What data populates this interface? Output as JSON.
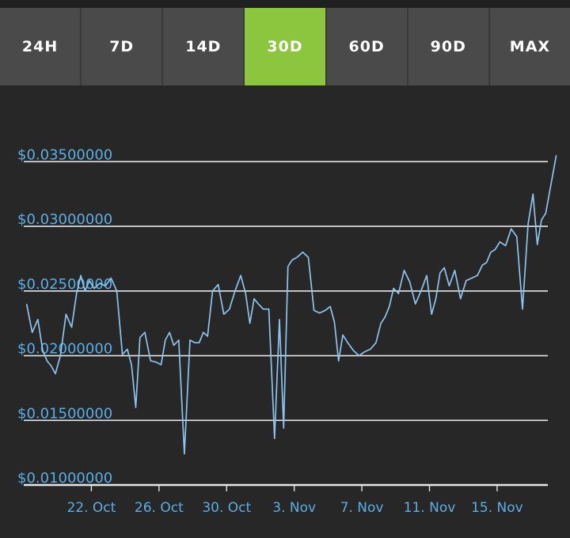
{
  "tabs": [
    {
      "label": "24H",
      "active": false
    },
    {
      "label": "7D",
      "active": false
    },
    {
      "label": "14D",
      "active": false
    },
    {
      "label": "30D",
      "active": true
    },
    {
      "label": "60D",
      "active": false
    },
    {
      "label": "90D",
      "active": false
    },
    {
      "label": "MAX",
      "active": false
    }
  ],
  "colors": {
    "background": "#272727",
    "tab": "#4a4a4a",
    "tab_active": "#8cc63f",
    "line": "#8cc4ef",
    "axis_label": "#5aaee6",
    "grid": "#e6e6e6"
  },
  "chart_data": {
    "type": "line",
    "title": "",
    "xlabel": "",
    "ylabel": "",
    "ylim": [
      0.01,
      0.036
    ],
    "yticks": [
      0.01,
      0.015,
      0.02,
      0.025,
      0.03,
      0.035
    ],
    "ytick_labels": [
      "$0.01000000",
      "$0.01500000",
      "$0.02000000",
      "$0.02500000",
      "$0.03000000",
      "$0.03500000"
    ],
    "xlim": [
      "2023-10-18",
      "2023-11-18"
    ],
    "xticks": [
      "2023-10-22",
      "2023-10-26",
      "2023-10-30",
      "2023-11-03",
      "2023-11-07",
      "2023-11-11",
      "2023-11-15"
    ],
    "xtick_labels": [
      "22. Oct",
      "26. Oct",
      "30. Oct",
      "3. Nov",
      "7. Nov",
      "11. Nov",
      "15. Nov"
    ],
    "grid": true,
    "series": [
      {
        "x": [
          "2023-10-18",
          "2023-10-18",
          "2023-10-18",
          "2023-10-19",
          "2023-10-19",
          "2023-10-19",
          "2023-10-19",
          "2023-10-20",
          "2023-10-20",
          "2023-10-20",
          "2023-10-21",
          "2023-10-21",
          "2023-10-21",
          "2023-10-21",
          "2023-10-22",
          "2023-10-22",
          "2023-10-22",
          "2023-10-23",
          "2023-10-23",
          "2023-10-23",
          "2023-10-24",
          "2023-10-24",
          "2023-10-24",
          "2023-10-24",
          "2023-10-25",
          "2023-10-25",
          "2023-10-25",
          "2023-10-26",
          "2023-10-26",
          "2023-10-26",
          "2023-10-26",
          "2023-10-27",
          "2023-10-27",
          "2023-10-27",
          "2023-10-28",
          "2023-10-28",
          "2023-10-28",
          "2023-10-28",
          "2023-10-29",
          "2023-10-29",
          "2023-10-29",
          "2023-10-30",
          "2023-10-30",
          "2023-10-30",
          "2023-10-31",
          "2023-10-31",
          "2023-10-31",
          "2023-10-31",
          "2023-11-01",
          "2023-11-01",
          "2023-11-01",
          "2023-11-02",
          "2023-11-02",
          "2023-11-02",
          "2023-11-02",
          "2023-11-03",
          "2023-11-03",
          "2023-11-03",
          "2023-11-04",
          "2023-11-04",
          "2023-11-04",
          "2023-11-05",
          "2023-11-05",
          "2023-11-05",
          "2023-11-05",
          "2023-11-06",
          "2023-11-06",
          "2023-11-06",
          "2023-11-07",
          "2023-11-07",
          "2023-11-07",
          "2023-11-08",
          "2023-11-08",
          "2023-11-08",
          "2023-11-08",
          "2023-11-09",
          "2023-11-09",
          "2023-11-09",
          "2023-11-10",
          "2023-11-10",
          "2023-11-10",
          "2023-11-11",
          "2023-11-11",
          "2023-11-11",
          "2023-11-11",
          "2023-11-12",
          "2023-11-12",
          "2023-11-12",
          "2023-11-13",
          "2023-11-13",
          "2023-11-13",
          "2023-11-14",
          "2023-11-14",
          "2023-11-14",
          "2023-11-14",
          "2023-11-15",
          "2023-11-15",
          "2023-11-15",
          "2023-11-16",
          "2023-11-16",
          "2023-11-16",
          "2023-11-17",
          "2023-11-17",
          "2023-11-17",
          "2023-11-17",
          "2023-11-18"
        ],
        "values": [
          0.024,
          0.0218,
          0.0228,
          0.0204,
          0.0196,
          0.0192,
          0.0186,
          0.02,
          0.0232,
          0.0222,
          0.0248,
          0.0262,
          0.025,
          0.0258,
          0.0252,
          0.0256,
          0.0254,
          0.026,
          0.025,
          0.0201,
          0.0205,
          0.0193,
          0.016,
          0.0214,
          0.0218,
          0.0196,
          0.0195,
          0.0193,
          0.0212,
          0.0218,
          0.0208,
          0.0212,
          0.0124,
          0.0212,
          0.021,
          0.021,
          0.0218,
          0.0215,
          0.025,
          0.0255,
          0.0232,
          0.0236,
          0.025,
          0.0262,
          0.0248,
          0.0225,
          0.0244,
          0.024,
          0.0236,
          0.0236,
          0.0136,
          0.0228,
          0.0144,
          0.0269,
          0.0274,
          0.0276,
          0.028,
          0.0276,
          0.0235,
          0.0233,
          0.0235,
          0.0238,
          0.0226,
          0.0196,
          0.0216,
          0.021,
          0.0204,
          0.02,
          0.0203,
          0.0205,
          0.021,
          0.0225,
          0.023,
          0.0238,
          0.0252,
          0.0248,
          0.0266,
          0.0257,
          0.024,
          0.025,
          0.0262,
          0.0232,
          0.0244,
          0.0264,
          0.0268,
          0.0254,
          0.0266,
          0.0244,
          0.0258,
          0.026,
          0.0262,
          0.027,
          0.0272,
          0.028,
          0.0282,
          0.0288,
          0.0285,
          0.0298,
          0.0292,
          0.0236,
          0.0302,
          0.0325,
          0.0286,
          0.0305,
          0.031,
          0.0355
        ]
      }
    ]
  }
}
